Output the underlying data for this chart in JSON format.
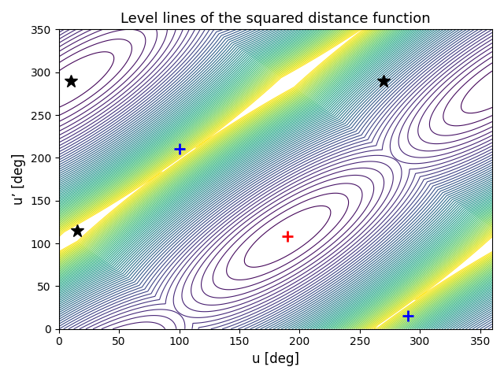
{
  "title": "Level lines of the squared distance function",
  "xlabel": "u [deg]",
  "ylabel": "u’ [deg]",
  "xlim": [
    0,
    360
  ],
  "ylim": [
    0,
    350
  ],
  "xticks": [
    0,
    50,
    100,
    150,
    200,
    250,
    300,
    350
  ],
  "yticks": [
    0,
    50,
    100,
    150,
    200,
    250,
    300,
    350
  ],
  "n_levels": 60,
  "colormap": "viridis",
  "red_plus": [
    190,
    108
  ],
  "blue_plus1": [
    100,
    210
  ],
  "blue_plus2": [
    290,
    15
  ],
  "star1": [
    10,
    290
  ],
  "star2": [
    270,
    290
  ],
  "star3": [
    15,
    115
  ],
  "figsize": [
    6.4,
    4.8
  ],
  "dpi": 100,
  "alpha": 1.0,
  "beta": 0.12
}
